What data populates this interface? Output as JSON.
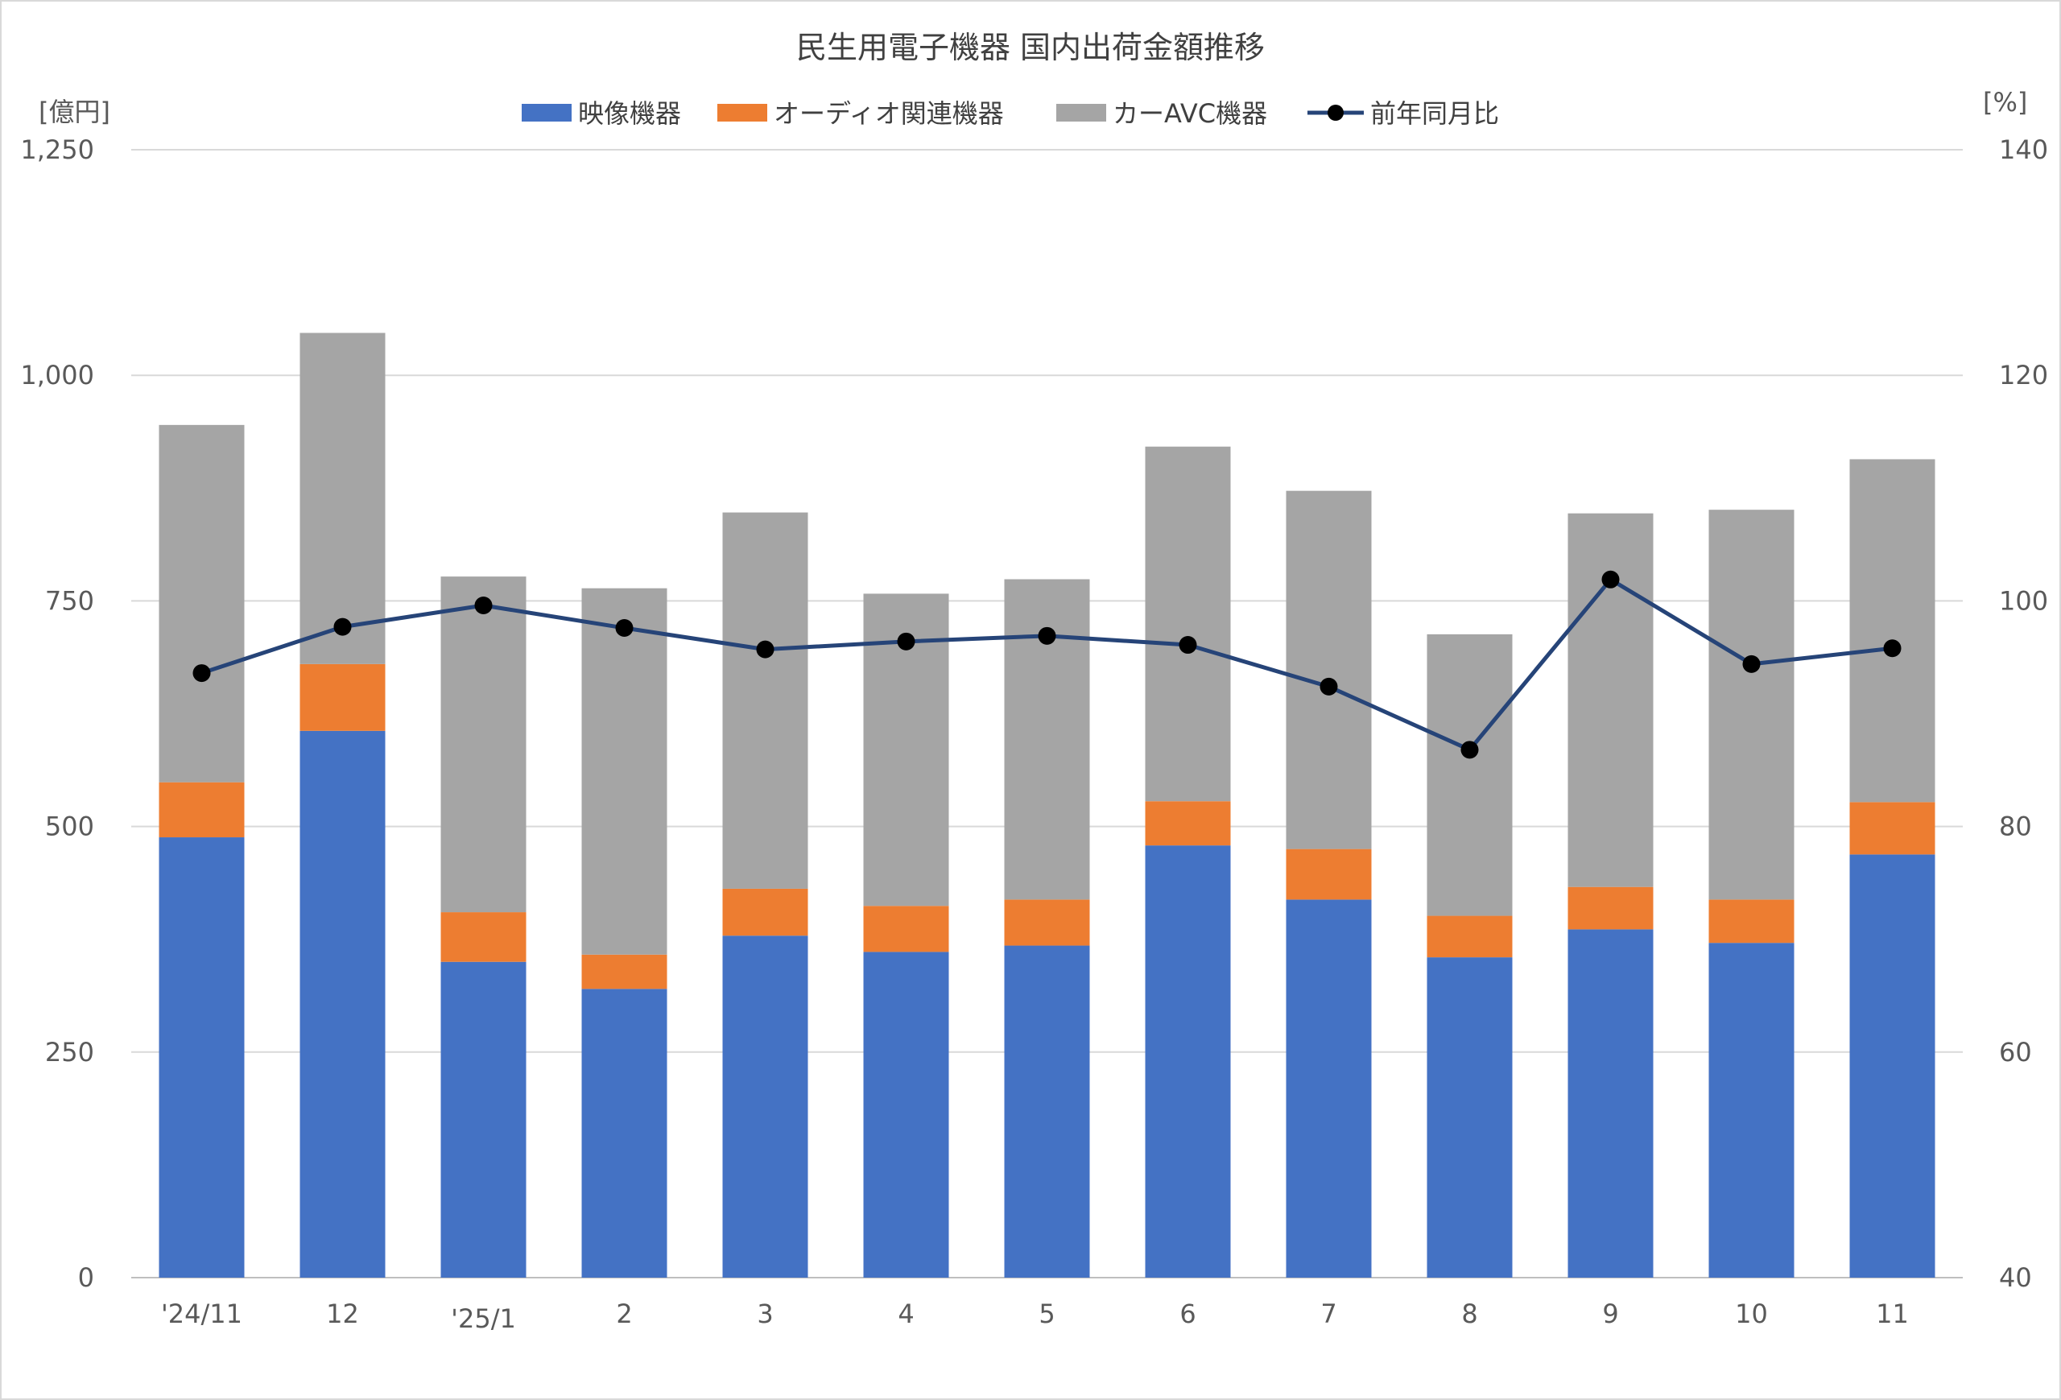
{
  "chart_data": {
    "type": "bar",
    "title": "民生用電子機器 国内出荷金額推移",
    "y_unit_left": "[億円]",
    "y_unit_right": "[%]",
    "categories": [
      "'24/11",
      "12",
      "'25/1",
      "2",
      "3",
      "4",
      "5",
      "6",
      "7",
      "8",
      "9",
      "10",
      "11"
    ],
    "stacked": true,
    "series": [
      {
        "name": "映像機器",
        "type": "bar",
        "axis": "left",
        "color": "#4472C4",
        "values": [
          488,
          606,
          350,
          320,
          379,
          361,
          368,
          479,
          419,
          355,
          386,
          371,
          469
        ]
      },
      {
        "name": "オーディオ関連機器",
        "type": "bar",
        "axis": "left",
        "color": "#ED7D31",
        "values": [
          61,
          74,
          55,
          38,
          52,
          51,
          51,
          49,
          56,
          46,
          47,
          48,
          58
        ]
      },
      {
        "name": "カーAVC機器",
        "type": "bar",
        "axis": "left",
        "color": "#A5A5A5",
        "values": [
          396,
          367,
          372,
          406,
          417,
          346,
          355,
          393,
          397,
          312,
          414,
          432,
          380
        ]
      },
      {
        "name": "前年同月比",
        "type": "line",
        "axis": "right",
        "color": "#264478",
        "values": [
          93.6,
          97.7,
          99.6,
          97.6,
          95.7,
          96.4,
          96.9,
          96.1,
          92.4,
          86.8,
          101.9,
          94.4,
          95.8
        ]
      }
    ],
    "ylim_left": [
      0,
      1250
    ],
    "yticks_left": [
      "0",
      "250",
      "500",
      "750",
      "1,000",
      "1,250"
    ],
    "ylim_right": [
      40,
      140
    ],
    "yticks_right": [
      "40",
      "60",
      "80",
      "100",
      "120",
      "140"
    ],
    "grid": true,
    "legend_position": "top"
  }
}
